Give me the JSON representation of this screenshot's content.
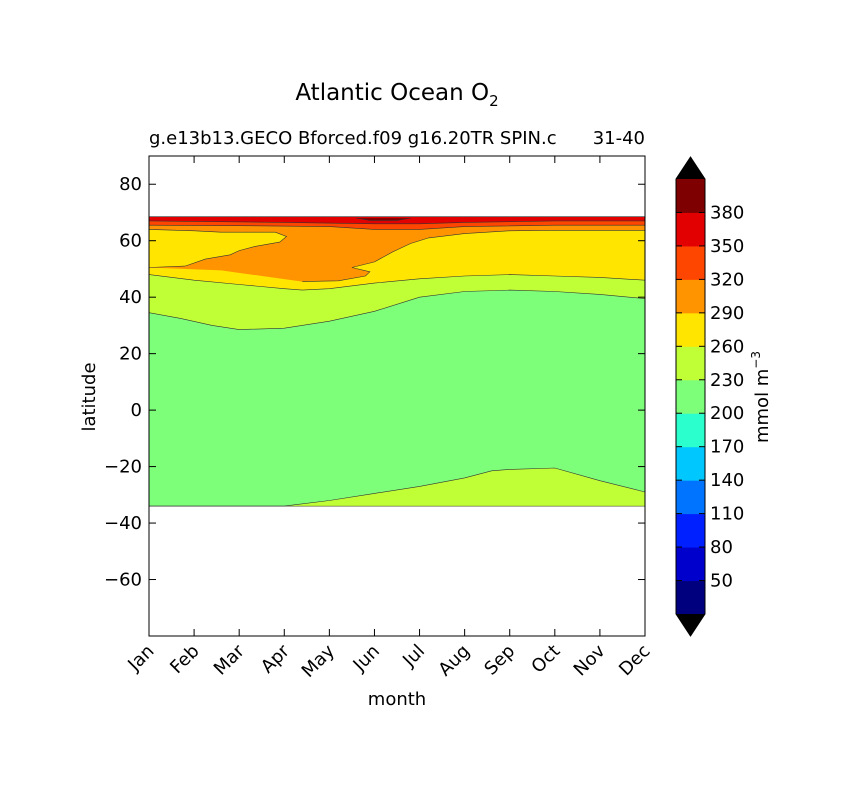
{
  "chart_data": {
    "type": "heatmap",
    "title": "Atlantic Ocean O",
    "title_subscript": "2",
    "subtitle_left": "g.e13b13.GECO Bforced.f09 g16.20TR SPIN.c",
    "subtitle_right": "31-40",
    "xlabel": "month",
    "ylabel": "latitude",
    "x_categories": [
      "Jan",
      "Feb",
      "Mar",
      "Apr",
      "May",
      "Jun",
      "Jul",
      "Aug",
      "Sep",
      "Oct",
      "Nov",
      "Dec"
    ],
    "xlim": [
      1,
      12
    ],
    "ylim": [
      -80,
      90
    ],
    "yticks": [
      80,
      60,
      40,
      20,
      0,
      -20,
      -40,
      -60
    ],
    "colorbar": {
      "label": "mmol m",
      "label_superscript": "−3",
      "levels": [
        20,
        50,
        80,
        110,
        140,
        170,
        200,
        230,
        260,
        290,
        320,
        350,
        380,
        410
      ],
      "tick_labels": [
        "50",
        "80",
        "110",
        "140",
        "170",
        "200",
        "230",
        "260",
        "290",
        "320",
        "350",
        "380"
      ],
      "colors": [
        "#00007f",
        "#0000cd",
        "#0020ff",
        "#0074ff",
        "#00c8ff",
        "#2affcd",
        "#7dff7a",
        "#c0ff36",
        "#ffe500",
        "#ff9400",
        "#ff4600",
        "#e30000",
        "#7f0000"
      ],
      "extend_low_color": "#000000",
      "extend_high_color": "#000000"
    },
    "data_south_limit": -34,
    "contour_lines": [
      {
        "name": "230",
        "color_below": "#7dff7a",
        "color_above": "#c0ff36",
        "points": [
          [
            1,
            -34
          ],
          [
            2,
            -34
          ],
          [
            3,
            -34
          ],
          [
            4,
            -34
          ],
          [
            5,
            -32
          ],
          [
            6,
            -29.5
          ],
          [
            7,
            -27
          ],
          [
            8,
            -24
          ],
          [
            8.6,
            -21.5
          ],
          [
            9,
            -21
          ],
          [
            10,
            -20.5
          ],
          [
            11,
            -25
          ],
          [
            12,
            -29
          ]
        ]
      },
      {
        "name": "230",
        "color_below": "#c0ff36",
        "color_above": "#7dff7a",
        "points": [
          [
            1,
            34.5
          ],
          [
            1.7,
            32.5
          ],
          [
            2.4,
            30
          ],
          [
            3,
            28.5
          ],
          [
            4,
            29
          ],
          [
            5,
            31.5
          ],
          [
            6,
            35
          ],
          [
            7,
            40
          ],
          [
            8,
            42
          ],
          [
            9,
            42.5
          ],
          [
            10,
            42
          ],
          [
            11,
            41
          ],
          [
            12,
            39.5
          ]
        ]
      },
      {
        "name": "260",
        "color_below": "#c0ff36",
        "color_above": "#ffe500",
        "points": [
          [
            1,
            48
          ],
          [
            2,
            46
          ],
          [
            3,
            44.5
          ],
          [
            4,
            43
          ],
          [
            4.4,
            42.5
          ],
          [
            5,
            43
          ],
          [
            6,
            45
          ],
          [
            7,
            46.5
          ],
          [
            8,
            47.5
          ],
          [
            9,
            48
          ],
          [
            10,
            47.5
          ],
          [
            11,
            47
          ],
          [
            12,
            46
          ]
        ]
      },
      {
        "name": "290",
        "color_below": "#ffe500",
        "color_above": "#ff9400",
        "points": [
          [
            1,
            50.5
          ],
          [
            1.8,
            51
          ],
          [
            2.25,
            53.5
          ],
          [
            2.8,
            55
          ],
          [
            3,
            56.5
          ],
          [
            3.35,
            58
          ],
          [
            3.9,
            59.5
          ],
          [
            4.05,
            61.5
          ],
          [
            3.8,
            63
          ],
          [
            3.3,
            63
          ],
          [
            2.6,
            63
          ],
          [
            2,
            63.5
          ],
          [
            1,
            64
          ]
        ]
      },
      {
        "name": "290",
        "color_below": "#ff9400",
        "color_above": "#ffe500",
        "points": [
          [
            4.4,
            45.5
          ],
          [
            5.2,
            45.8
          ],
          [
            5.8,
            47.5
          ],
          [
            5.9,
            49
          ],
          [
            5.5,
            50.5
          ],
          [
            6,
            52.5
          ],
          [
            6.4,
            56
          ],
          [
            6.8,
            59
          ],
          [
            7.2,
            61
          ],
          [
            8,
            62.5
          ],
          [
            9,
            63.5
          ],
          [
            10,
            63.7
          ],
          [
            12,
            63.7
          ]
        ]
      },
      {
        "name": "320",
        "color_below": "#ff9400",
        "color_above": "#ff4600",
        "points": [
          [
            1,
            65.5
          ],
          [
            3,
            65.3
          ],
          [
            5,
            65
          ],
          [
            6,
            64
          ],
          [
            7,
            64
          ],
          [
            8,
            65
          ],
          [
            10,
            65.5
          ],
          [
            12,
            65.5
          ]
        ]
      },
      {
        "name": "350",
        "color_below": "#ff4600",
        "color_above": "#e30000",
        "points": [
          [
            1,
            67
          ],
          [
            4,
            66.5
          ],
          [
            6,
            66
          ],
          [
            7,
            66
          ],
          [
            8,
            66.5
          ],
          [
            10,
            67
          ],
          [
            12,
            67
          ]
        ]
      },
      {
        "name": "380",
        "color_below": "#e30000",
        "color_above": "#7f0000",
        "points": [
          [
            5.6,
            68
          ],
          [
            5.9,
            67.2
          ],
          [
            6.5,
            67.2
          ],
          [
            6.8,
            68
          ]
        ]
      }
    ],
    "data_north_limit": 68.5,
    "grid": false
  }
}
